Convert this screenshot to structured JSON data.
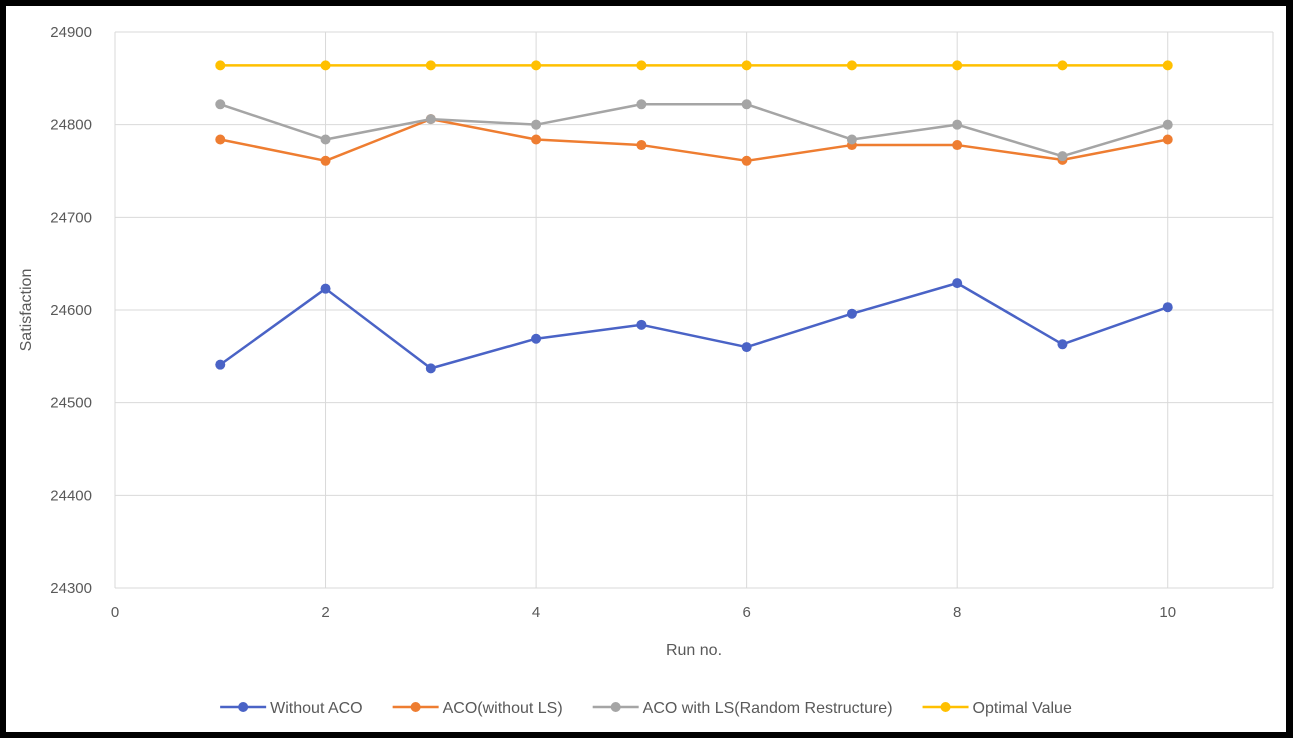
{
  "chart_data": {
    "type": "line",
    "title": "",
    "xlabel": "Run no.",
    "ylabel": "Satisfaction",
    "xlim": [
      0,
      11
    ],
    "ylim": [
      24300,
      24900
    ],
    "x_ticks": [
      0,
      2,
      4,
      6,
      8,
      10
    ],
    "y_ticks": [
      24300,
      24400,
      24500,
      24600,
      24700,
      24800,
      24900
    ],
    "grid": true,
    "legend_position": "bottom",
    "x": [
      1,
      2,
      3,
      4,
      5,
      6,
      7,
      8,
      9,
      10
    ],
    "series": [
      {
        "name": "Without ACO",
        "color": "#4a63c6",
        "values": [
          24541,
          24623,
          24537,
          24569,
          24584,
          24560,
          24596,
          24629,
          24563,
          24603
        ]
      },
      {
        "name": "ACO(without LS)",
        "color": "#ee7d31",
        "values": [
          24784,
          24761,
          24806,
          24784,
          24778,
          24761,
          24778,
          24778,
          24762,
          24784
        ]
      },
      {
        "name": "ACO with LS(Random Restructure)",
        "color": "#a5a5a5",
        "values": [
          24822,
          24784,
          24806,
          24800,
          24822,
          24822,
          24784,
          24800,
          24766,
          24800
        ]
      },
      {
        "name": "Optimal Value",
        "color": "#ffc000",
        "values": [
          24864,
          24864,
          24864,
          24864,
          24864,
          24864,
          24864,
          24864,
          24864,
          24864
        ]
      }
    ]
  }
}
